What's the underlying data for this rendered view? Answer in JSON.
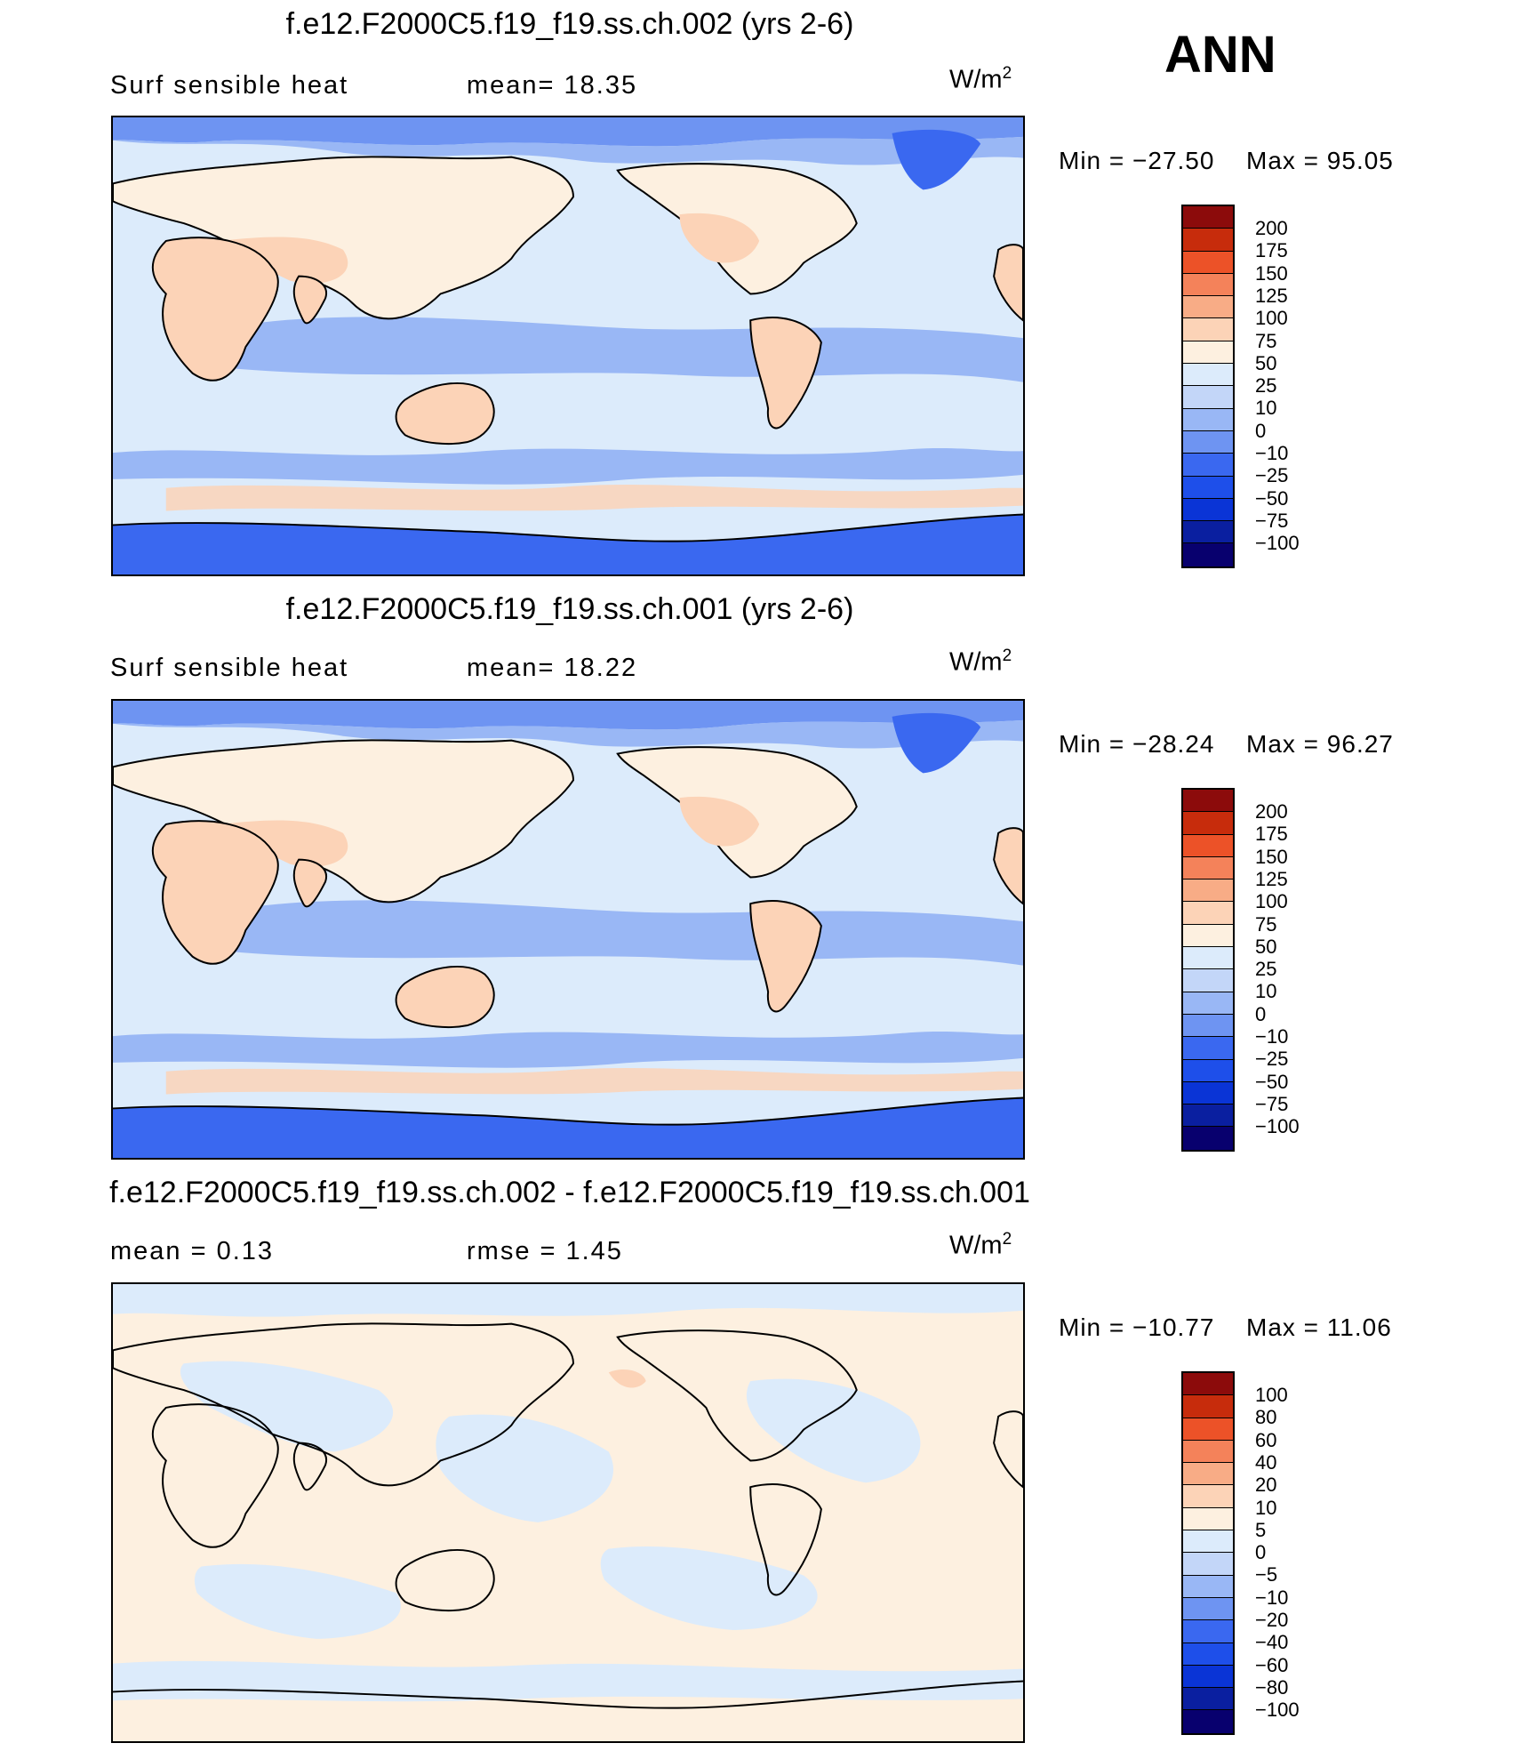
{
  "season": "ANN",
  "units_base": "W/m",
  "units_sup": "2",
  "colors": {
    "abs_scale": [
      "#08006e",
      "#0a1fa0",
      "#0a34d6",
      "#1e4fea",
      "#3a68f0",
      "#6e94f2",
      "#99b7f5",
      "#c3d6f8",
      "#dcebfb",
      "#fdf0e0",
      "#fcd3b7",
      "#f8ac86",
      "#f4825a",
      "#ec5228",
      "#c72c0c",
      "#8c0b0b"
    ],
    "diff_scale": [
      "#08006e",
      "#0a1fa0",
      "#0a34d6",
      "#1e4fea",
      "#3a68f0",
      "#6e94f2",
      "#99b7f5",
      "#c3d6f8",
      "#dcebfb",
      "#fdf0e0",
      "#fcd3b7",
      "#f8ac86",
      "#f4825a",
      "#ec5228",
      "#c72c0c",
      "#8c0b0b"
    ]
  },
  "panels": [
    {
      "title": "f.e12.F2000C5.f19_f19.ss.ch.002 (yrs 2-6)",
      "left_label": "Surf  sensible  heat",
      "mid_label": "mean=   18.35",
      "min_label": "Min  =  −27.50",
      "max_label": "Max  =    95.05",
      "colorbar_labels": [
        "200",
        "175",
        "150",
        "125",
        "100",
        "75",
        "50",
        "25",
        "10",
        "0",
        "−10",
        "−25",
        "−50",
        "−75",
        "−100"
      ]
    },
    {
      "title": "f.e12.F2000C5.f19_f19.ss.ch.001 (yrs 2-6)",
      "left_label": "Surf  sensible  heat",
      "mid_label": "mean=   18.22",
      "min_label": "Min  =  −28.24",
      "max_label": "Max  =    96.27",
      "colorbar_labels": [
        "200",
        "175",
        "150",
        "125",
        "100",
        "75",
        "50",
        "25",
        "10",
        "0",
        "−10",
        "−25",
        "−50",
        "−75",
        "−100"
      ]
    },
    {
      "title": "f.e12.F2000C5.f19_f19.ss.ch.002 - f.e12.F2000C5.f19_f19.ss.ch.001",
      "left_label": "mean  =     0.13",
      "mid_label": "rmse  =     1.45",
      "min_label": "Min  =  −10.77",
      "max_label": "Max  =    11.06",
      "colorbar_labels": [
        "100",
        "80",
        "60",
        "40",
        "20",
        "10",
        "5",
        "0",
        "−5",
        "−10",
        "−20",
        "−40",
        "−60",
        "−80",
        "−100"
      ]
    }
  ]
}
